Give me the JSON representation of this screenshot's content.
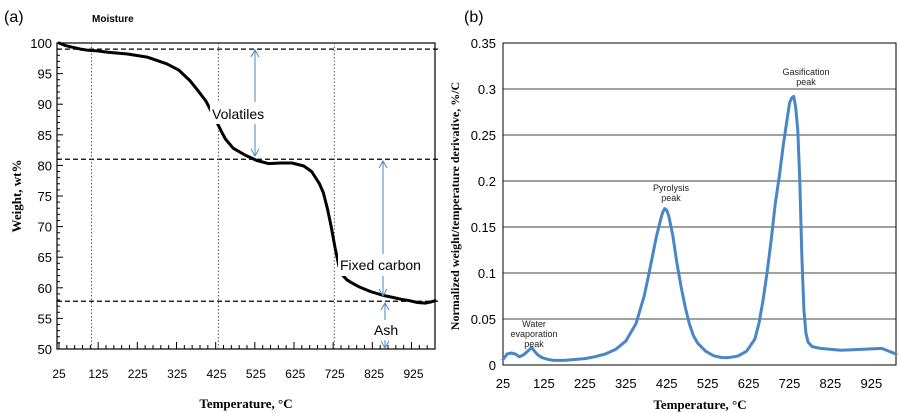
{
  "panels": [
    {
      "id": "a",
      "panel_label": "(a)",
      "corner_note": "Moisture",
      "xlabel": "Temperature, °C",
      "ylabel": "Weight, wt%",
      "xticks": [
        "25",
        "125",
        "225",
        "325",
        "425",
        "525",
        "625",
        "725",
        "825",
        "925"
      ],
      "yticks": [
        "100",
        "95",
        "90",
        "85",
        "80",
        "75",
        "70",
        "65",
        "60",
        "55",
        "50"
      ],
      "annotations": {
        "volatiles": "Volatiles",
        "fixed_carbon": "Fixed carbon",
        "ash": "Ash"
      }
    },
    {
      "id": "b",
      "panel_label": "(b)",
      "xlabel": "Temperature, °C",
      "ylabel": "Normalized weight/temperature derivative, %/C",
      "xticks": [
        "25",
        "125",
        "225",
        "325",
        "425",
        "525",
        "625",
        "725",
        "825",
        "925"
      ],
      "yticks": [
        "0.35",
        "0.3",
        "0.25",
        "0.2",
        "0.15",
        "0.1",
        "0.05",
        "0"
      ],
      "annotations": {
        "water": [
          "Water",
          "evaporation",
          "peak"
        ],
        "pyrolysis": [
          "Pyrolysis",
          "peak"
        ],
        "gasification": [
          "Gasification",
          "peak"
        ]
      }
    }
  ],
  "chart_data": [
    {
      "type": "line",
      "panel": "a",
      "xlabel": "Temperature, °C",
      "ylabel": "Weight, wt%",
      "xlim": [
        25,
        985
      ],
      "ylim": [
        50,
        100
      ],
      "grid": false,
      "reference_lines": {
        "horizontal_dashed": [
          99,
          81,
          57.8
        ],
        "vertical_dotted": [
          108,
          432,
          728
        ]
      },
      "series": [
        {
          "color": "#000000",
          "x": [
            25,
            40,
            60,
            80,
            100,
            125,
            150,
            200,
            250,
            300,
            330,
            360,
            380,
            400,
            410,
            420,
            430,
            440,
            450,
            470,
            500,
            530,
            560,
            590,
            620,
            650,
            670,
            690,
            700,
            710,
            720,
            730,
            740,
            750,
            760,
            770,
            790,
            820,
            850,
            880,
            900,
            920,
            940,
            960,
            975,
            985
          ],
          "y": [
            100,
            99.6,
            99.3,
            99,
            98.8,
            98.7,
            98.5,
            98.2,
            97.7,
            96.6,
            95.6,
            93.8,
            92.2,
            90.5,
            89.3,
            88,
            86.8,
            85.5,
            84.3,
            82.8,
            81.7,
            80.8,
            80.3,
            80.4,
            80.4,
            79.9,
            79,
            77,
            75.5,
            73,
            70,
            66.5,
            63.5,
            62,
            61.3,
            60.9,
            60.2,
            59.4,
            58.8,
            58.4,
            58.1,
            57.9,
            57.6,
            57.5,
            57.7,
            57.9
          ]
        }
      ]
    },
    {
      "type": "line",
      "panel": "b",
      "xlabel": "Temperature, °C",
      "ylabel": "Normalized weight/temperature derivative, %/C",
      "xlim": [
        25,
        985
      ],
      "ylim": [
        0,
        0.35
      ],
      "grid": true,
      "series": [
        {
          "color": "#4a86c5",
          "x": [
            25,
            35,
            45,
            55,
            65,
            75,
            85,
            95,
            100,
            110,
            120,
            135,
            150,
            175,
            200,
            225,
            250,
            275,
            300,
            325,
            350,
            370,
            380,
            390,
            400,
            410,
            415,
            420,
            425,
            430,
            440,
            450,
            460,
            470,
            480,
            490,
            500,
            520,
            540,
            560,
            575,
            590,
            600,
            620,
            640,
            650,
            660,
            670,
            680,
            690,
            700,
            710,
            720,
            725,
            730,
            735,
            740,
            745,
            750,
            755,
            760,
            765,
            770,
            780,
            800,
            850,
            900,
            950,
            985
          ],
          "y": [
            0.006,
            0.012,
            0.013,
            0.012,
            0.009,
            0.011,
            0.015,
            0.019,
            0.016,
            0.011,
            0.008,
            0.006,
            0.005,
            0.005,
            0.006,
            0.007,
            0.009,
            0.012,
            0.017,
            0.026,
            0.045,
            0.075,
            0.096,
            0.118,
            0.14,
            0.158,
            0.166,
            0.17,
            0.168,
            0.162,
            0.14,
            0.11,
            0.085,
            0.063,
            0.045,
            0.032,
            0.024,
            0.015,
            0.01,
            0.008,
            0.008,
            0.009,
            0.01,
            0.015,
            0.028,
            0.045,
            0.07,
            0.1,
            0.135,
            0.175,
            0.205,
            0.24,
            0.27,
            0.285,
            0.29,
            0.292,
            0.28,
            0.255,
            0.2,
            0.12,
            0.06,
            0.035,
            0.025,
            0.02,
            0.018,
            0.016,
            0.017,
            0.018,
            0.012
          ]
        }
      ]
    }
  ]
}
